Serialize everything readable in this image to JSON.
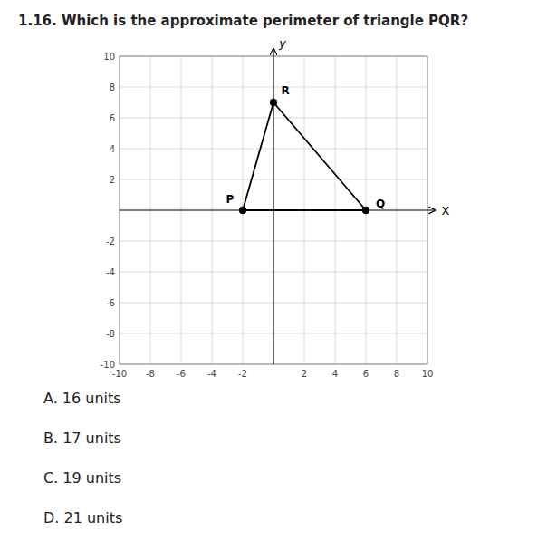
{
  "chart_data": {
    "type": "polygon",
    "title": "1.16. Which is the approximate perimeter of triangle PQR?",
    "x_label": "X",
    "y_label": "y",
    "x": [
      -2,
      0,
      6
    ],
    "values": [
      0,
      7,
      0
    ],
    "point_labels": [
      "P",
      "R",
      "Q"
    ],
    "color": "#000000",
    "marker": "circle",
    "xlim": [
      -10,
      10
    ],
    "ylim": [
      -10,
      10
    ],
    "xticks": [
      -10,
      -8,
      -6,
      -4,
      -2,
      2,
      4,
      6,
      8,
      10
    ],
    "yticks": [
      -10,
      -8,
      -6,
      -4,
      -2,
      2,
      4,
      6,
      8,
      10
    ],
    "grid": true,
    "annotations": [
      "A. 16 units",
      "B. 17 units",
      "C. 19 units",
      "D. 21 units"
    ]
  }
}
